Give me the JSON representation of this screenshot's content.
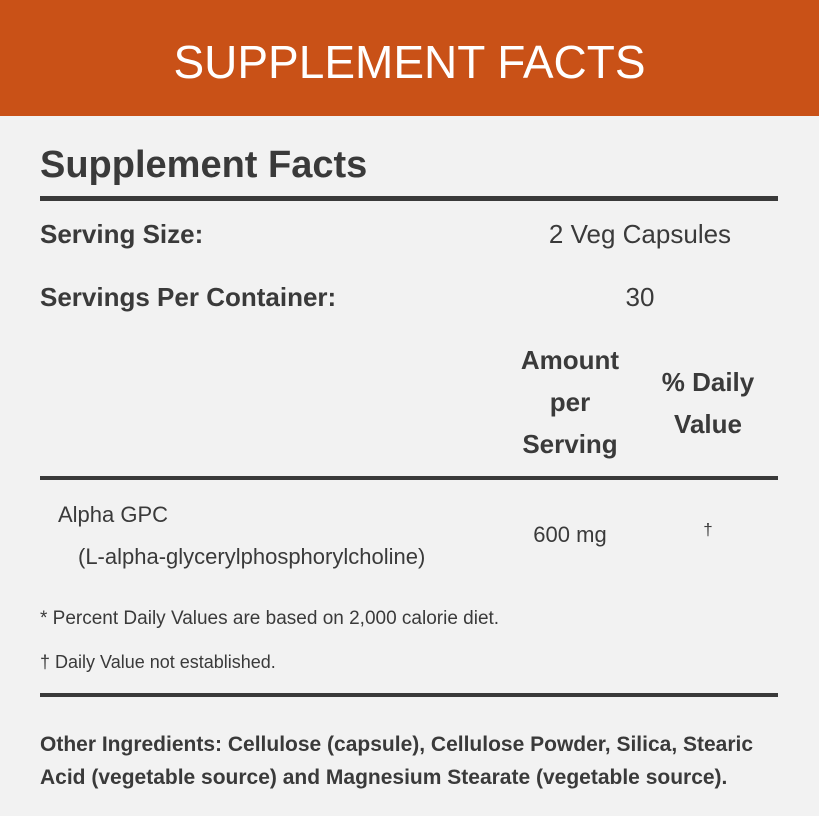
{
  "banner": {
    "title": "SUPPLEMENT FACTS",
    "color": "#c95117"
  },
  "facts": {
    "title": "Supplement Facts",
    "serving_size_label": "Serving Size:",
    "serving_size_value": "2 Veg Capsules",
    "servings_per_container_label": "Servings Per Container:",
    "servings_per_container_value": "30",
    "columns": {
      "amount": "Amount per Serving",
      "daily_value": "% Daily Value"
    },
    "ingredients": [
      {
        "name": "Alpha GPC",
        "subname": "(L-alpha-glycerylphosphorylcholine)",
        "amount": "600 mg",
        "daily_value": "†"
      }
    ],
    "footnotes": [
      "* Percent Daily Values are based on 2,000 calorie diet.",
      "† Daily Value not established."
    ],
    "other_ingredients": "Other Ingredients: Cellulose (capsule), Cellulose Powder, Silica, Stearic Acid (vegetable source) and Magnesium Stearate (vegetable source)."
  }
}
